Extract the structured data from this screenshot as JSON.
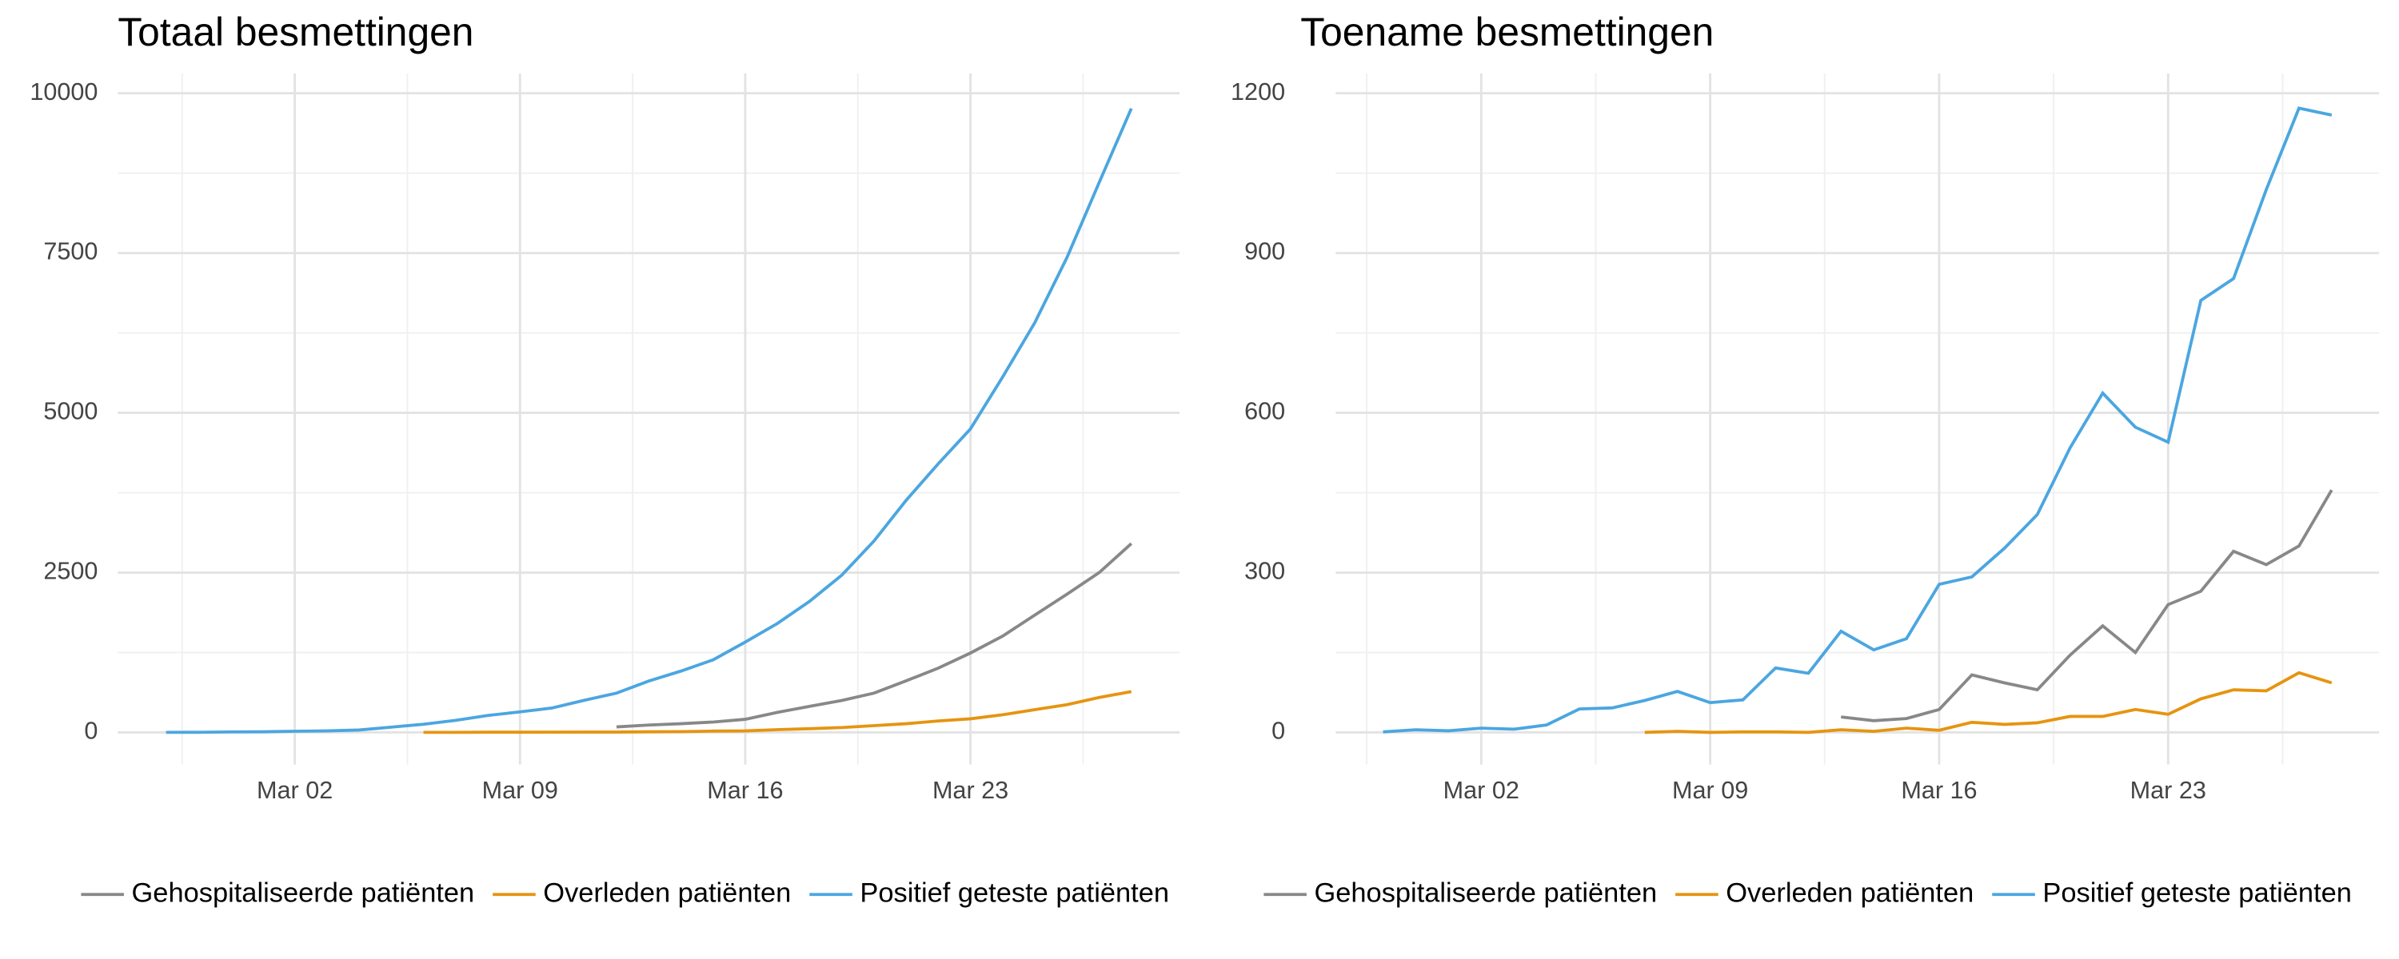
{
  "chart_data": [
    {
      "type": "line",
      "title": "Totaal besmettingen",
      "x": [
        "Feb 27",
        "Feb 28",
        "Feb 29",
        "Mar 01",
        "Mar 02",
        "Mar 03",
        "Mar 04",
        "Mar 05",
        "Mar 06",
        "Mar 07",
        "Mar 08",
        "Mar 09",
        "Mar 10",
        "Mar 11",
        "Mar 12",
        "Mar 13",
        "Mar 14",
        "Mar 15",
        "Mar 16",
        "Mar 17",
        "Mar 18",
        "Mar 19",
        "Mar 20",
        "Mar 21",
        "Mar 22",
        "Mar 23",
        "Mar 24",
        "Mar 25",
        "Mar 26",
        "Mar 27",
        "Mar 28"
      ],
      "xticks": [
        "Mar 02",
        "Mar 09",
        "Mar 16",
        "Mar 23"
      ],
      "ylim": [
        0,
        10000
      ],
      "yticks": [
        0,
        2500,
        5000,
        7500,
        10000
      ],
      "grid": true,
      "legend": "bottom",
      "series": [
        {
          "name": "Gehospitaliseerde patiënten",
          "color": "#888888",
          "values": [
            null,
            null,
            null,
            null,
            null,
            null,
            null,
            null,
            null,
            null,
            null,
            null,
            null,
            null,
            86,
            115,
            136,
            162,
            205,
            314,
            408,
            500,
            614,
            807,
            1006,
            1242,
            1507,
            1836,
            2163,
            2500,
            2954
          ]
        },
        {
          "name": "Overleden patiënten",
          "color": "#E69410",
          "values": [
            null,
            null,
            null,
            null,
            null,
            null,
            null,
            null,
            1,
            1,
            3,
            3,
            4,
            5,
            5,
            10,
            12,
            20,
            24,
            43,
            58,
            76,
            106,
            136,
            179,
            213,
            276,
            356,
            434,
            546,
            639
          ]
        },
        {
          "name": "Positief geteste patiënten",
          "color": "#4BA6E0",
          "values": [
            1,
            2,
            7,
            10,
            18,
            24,
            38,
            82,
            128,
            188,
            265,
            321,
            382,
            503,
            614,
            804,
            959,
            1135,
            1413,
            1705,
            2051,
            2460,
            2994,
            3631,
            4204,
            4749,
            5560,
            6412,
            7431,
            8603,
            9762
          ]
        }
      ]
    },
    {
      "type": "line",
      "title": "Toename besmettingen",
      "x": [
        "Feb 28",
        "Feb 29",
        "Mar 01",
        "Mar 02",
        "Mar 03",
        "Mar 04",
        "Mar 05",
        "Mar 06",
        "Mar 07",
        "Mar 08",
        "Mar 09",
        "Mar 10",
        "Mar 11",
        "Mar 12",
        "Mar 13",
        "Mar 14",
        "Mar 15",
        "Mar 16",
        "Mar 17",
        "Mar 18",
        "Mar 19",
        "Mar 20",
        "Mar 21",
        "Mar 22",
        "Mar 23",
        "Mar 24",
        "Mar 25",
        "Mar 26",
        "Mar 27",
        "Mar 28"
      ],
      "xticks": [
        "Mar 02",
        "Mar 09",
        "Mar 16",
        "Mar 23"
      ],
      "ylim": [
        0,
        1200
      ],
      "yticks": [
        0,
        300,
        600,
        900,
        1200
      ],
      "grid": true,
      "legend": "bottom",
      "series": [
        {
          "name": "Gehospitaliseerde patiënten",
          "color": "#888888",
          "values": [
            null,
            null,
            null,
            null,
            null,
            null,
            null,
            null,
            null,
            null,
            null,
            null,
            null,
            null,
            29,
            22,
            26,
            43,
            108,
            93,
            80,
            145,
            200,
            150,
            240,
            265,
            340,
            315,
            350,
            455
          ]
        },
        {
          "name": "Overleden patiënten",
          "color": "#E69410",
          "values": [
            null,
            null,
            null,
            null,
            null,
            null,
            null,
            null,
            0,
            2,
            0,
            1,
            1,
            0,
            5,
            2,
            8,
            4,
            19,
            15,
            18,
            30,
            30,
            43,
            34,
            63,
            80,
            78,
            112,
            93
          ]
        },
        {
          "name": "Positief geteste patiënten",
          "color": "#4BA6E0",
          "values": [
            1,
            5,
            3,
            8,
            6,
            14,
            44,
            46,
            60,
            77,
            56,
            61,
            121,
            111,
            190,
            155,
            176,
            278,
            292,
            346,
            409,
            534,
            637,
            573,
            545,
            811,
            852,
            1019,
            1172,
            1159
          ]
        }
      ]
    }
  ]
}
